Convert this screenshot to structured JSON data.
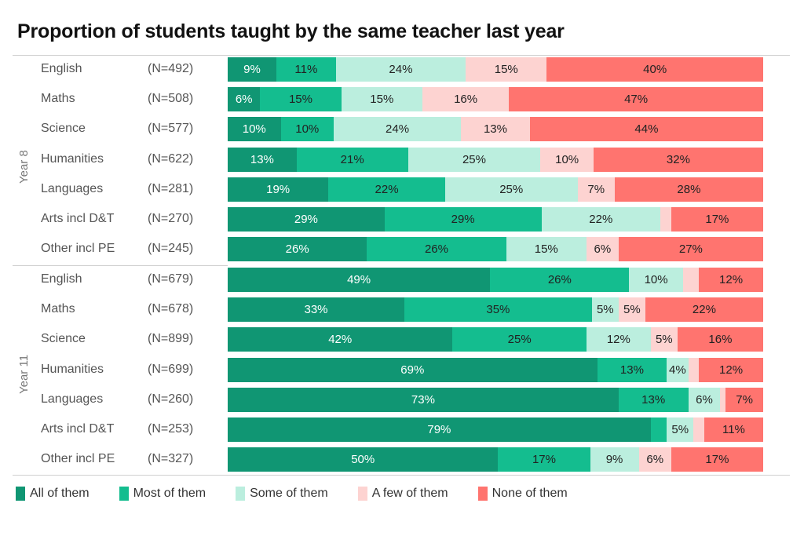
{
  "title": "Proportion of students taught by the same teacher last year",
  "legend": [
    {
      "key": "all",
      "label": "All of them",
      "color": "#109673"
    },
    {
      "key": "most",
      "label": "Most of them",
      "color": "#14bd8f"
    },
    {
      "key": "some",
      "label": "Some of them",
      "color": "#bbeede"
    },
    {
      "key": "few",
      "label": "A few of them",
      "color": "#fdd3d1"
    },
    {
      "key": "none",
      "label": "None of them",
      "color": "#ff746f"
    }
  ],
  "groups": [
    {
      "label": "Year 8",
      "rows": [
        {
          "subject": "English",
          "n": "(N=492)",
          "values": [
            9,
            11,
            24,
            15,
            40
          ],
          "labels": [
            "9%",
            "11%",
            "24%",
            "15%",
            "40%"
          ]
        },
        {
          "subject": "Maths",
          "n": "(N=508)",
          "values": [
            6,
            15,
            15,
            16,
            47
          ],
          "labels": [
            "6%",
            "15%",
            "15%",
            "16%",
            "47%"
          ]
        },
        {
          "subject": "Science",
          "n": "(N=577)",
          "values": [
            10,
            10,
            24,
            13,
            44
          ],
          "labels": [
            "10%",
            "10%",
            "24%",
            "13%",
            "44%"
          ]
        },
        {
          "subject": "Humanities",
          "n": "(N=622)",
          "values": [
            13,
            21,
            25,
            10,
            32
          ],
          "labels": [
            "13%",
            "21%",
            "25%",
            "10%",
            "32%"
          ]
        },
        {
          "subject": "Languages",
          "n": "(N=281)",
          "values": [
            19,
            22,
            25,
            7,
            28
          ],
          "labels": [
            "19%",
            "22%",
            "25%",
            "7%",
            "28%"
          ]
        },
        {
          "subject": "Arts incl D&T",
          "n": "(N=270)",
          "values": [
            29,
            29,
            22,
            2,
            17
          ],
          "labels": [
            "29%",
            "29%",
            "22%",
            "",
            "17%"
          ]
        },
        {
          "subject": "Other incl PE",
          "n": "(N=245)",
          "values": [
            26,
            26,
            15,
            6,
            27
          ],
          "labels": [
            "26%",
            "26%",
            "15%",
            "6%",
            "27%"
          ]
        }
      ]
    },
    {
      "label": "Year 11",
      "rows": [
        {
          "subject": "English",
          "n": "(N=679)",
          "values": [
            49,
            26,
            10,
            3,
            12
          ],
          "labels": [
            "49%",
            "26%",
            "10%",
            "",
            "12%"
          ]
        },
        {
          "subject": "Maths",
          "n": "(N=678)",
          "values": [
            33,
            35,
            5,
            5,
            22
          ],
          "labels": [
            "33%",
            "35%",
            "5%",
            "5%",
            "22%"
          ]
        },
        {
          "subject": "Science",
          "n": "(N=899)",
          "values": [
            42,
            25,
            12,
            5,
            16
          ],
          "labels": [
            "42%",
            "25%",
            "12%",
            "5%",
            "16%"
          ]
        },
        {
          "subject": "Humanities",
          "n": "(N=699)",
          "values": [
            69,
            13,
            4,
            2,
            12
          ],
          "labels": [
            "69%",
            "13%",
            "4%",
            "",
            "12%"
          ]
        },
        {
          "subject": "Languages",
          "n": "(N=260)",
          "values": [
            73,
            13,
            6,
            1,
            7
          ],
          "labels": [
            "73%",
            "13%",
            "6%",
            "",
            "7%"
          ]
        },
        {
          "subject": "Arts incl D&T",
          "n": "(N=253)",
          "values": [
            79,
            3,
            5,
            2,
            11
          ],
          "labels": [
            "79%",
            "",
            "5%",
            "",
            "11%"
          ]
        },
        {
          "subject": "Other incl PE",
          "n": "(N=327)",
          "values": [
            50,
            17,
            9,
            6,
            17
          ],
          "labels": [
            "50%",
            "17%",
            "9%",
            "6%",
            "17%"
          ]
        }
      ]
    }
  ],
  "chart_data": {
    "type": "bar",
    "orientation": "horizontal",
    "stacked": "100%",
    "title": "Proportion of students taught by the same teacher last year",
    "xlabel": "",
    "ylabel": "",
    "legend_position": "bottom",
    "categories": [
      "Year 8 English (N=492)",
      "Year 8 Maths (N=508)",
      "Year 8 Science (N=577)",
      "Year 8 Humanities (N=622)",
      "Year 8 Languages (N=281)",
      "Year 8 Arts incl D&T (N=270)",
      "Year 8 Other incl PE (N=245)",
      "Year 11 English (N=679)",
      "Year 11 Maths (N=678)",
      "Year 11 Science (N=899)",
      "Year 11 Humanities (N=699)",
      "Year 11 Languages (N=260)",
      "Year 11 Arts incl D&T (N=253)",
      "Year 11 Other incl PE (N=327)"
    ],
    "series": [
      {
        "name": "All of them",
        "values": [
          9,
          6,
          10,
          13,
          19,
          29,
          26,
          49,
          33,
          42,
          69,
          73,
          79,
          50
        ]
      },
      {
        "name": "Most of them",
        "values": [
          11,
          15,
          10,
          21,
          22,
          29,
          26,
          26,
          35,
          25,
          13,
          13,
          3,
          17
        ]
      },
      {
        "name": "Some of them",
        "values": [
          24,
          15,
          24,
          25,
          25,
          22,
          15,
          10,
          5,
          12,
          4,
          6,
          5,
          9
        ]
      },
      {
        "name": "A few of them",
        "values": [
          15,
          16,
          13,
          10,
          7,
          2,
          6,
          3,
          5,
          5,
          2,
          1,
          2,
          6
        ]
      },
      {
        "name": "None of them",
        "values": [
          40,
          47,
          44,
          32,
          28,
          17,
          27,
          12,
          22,
          16,
          12,
          7,
          11,
          17
        ]
      }
    ],
    "xlim": [
      0,
      100
    ],
    "grid": false
  }
}
